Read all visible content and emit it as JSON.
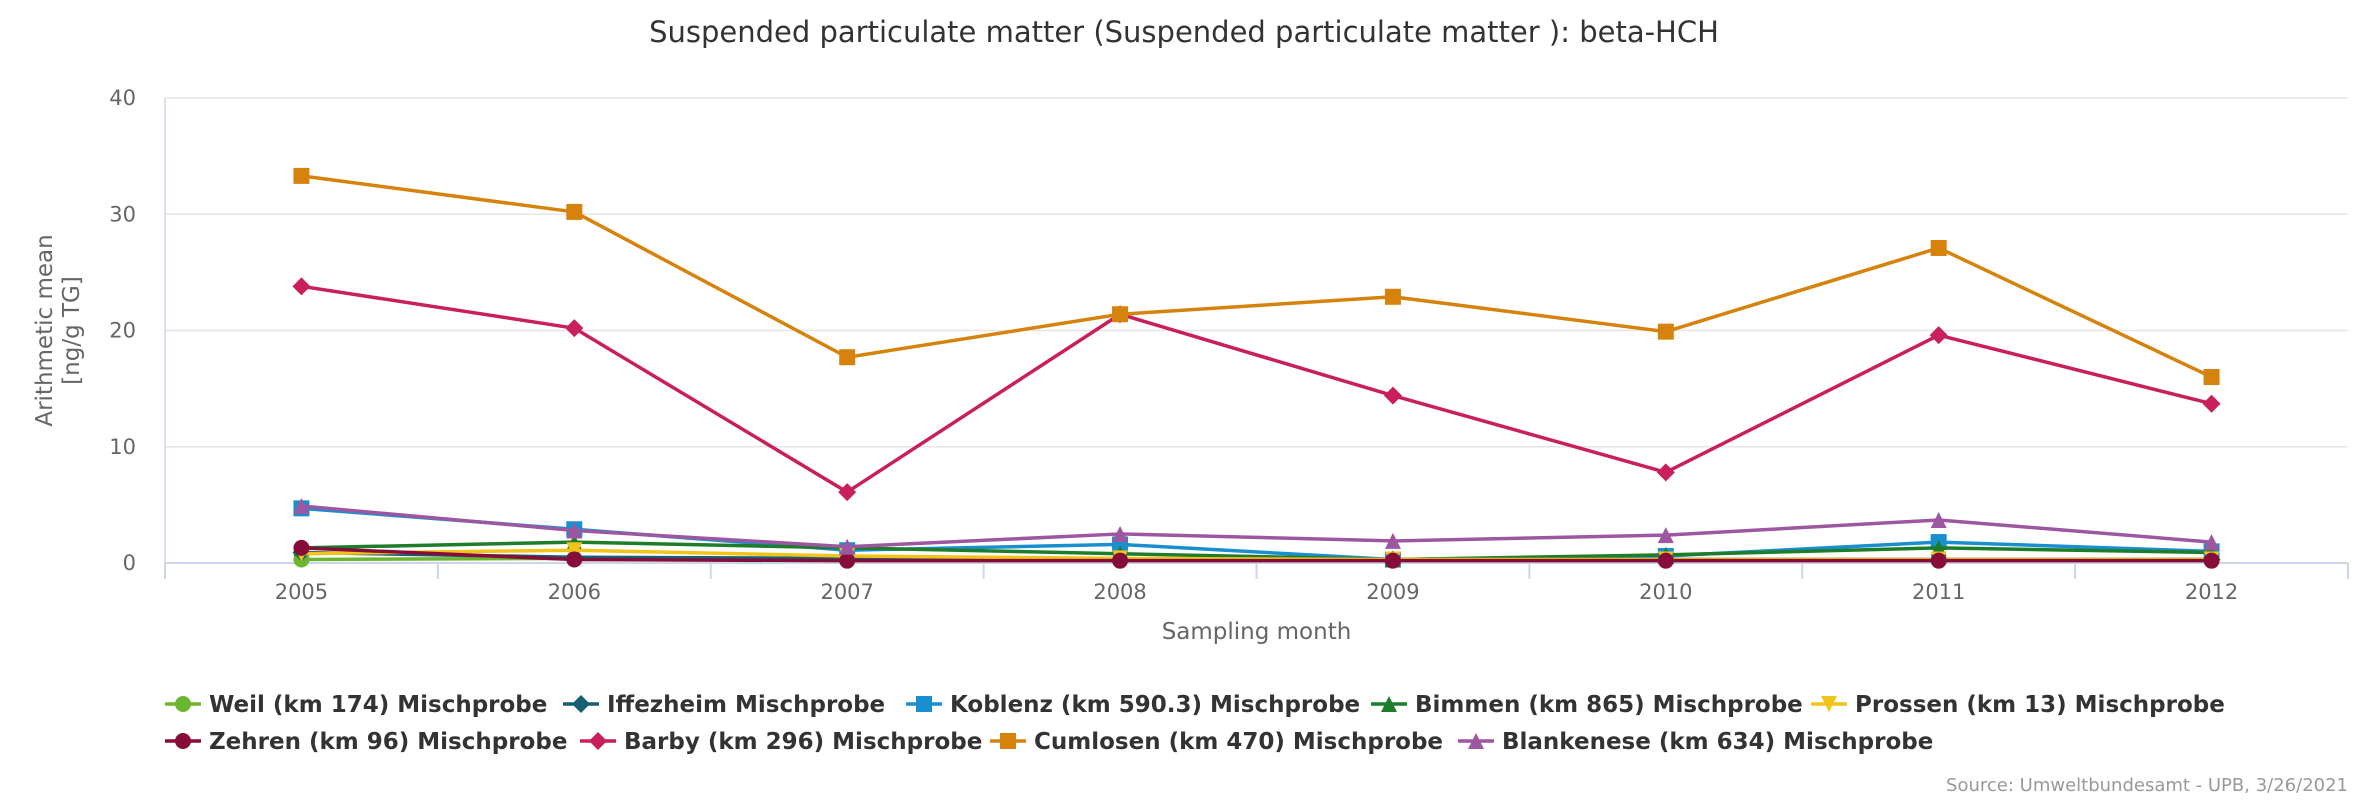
{
  "chart_data": {
    "type": "line",
    "title": "Suspended particulate matter (Suspended particulate matter ): beta-HCH",
    "xlabel": "Sampling month",
    "ylabel": [
      "Arithmetic mean",
      "[ng/g TG]"
    ],
    "categories": [
      "2005",
      "2006",
      "2007",
      "2008",
      "2009",
      "2010",
      "2011",
      "2012"
    ],
    "ylim": [
      0,
      40
    ],
    "yticks": [
      "0",
      "10",
      "20",
      "30",
      "40"
    ],
    "grid": true,
    "legend_position": "bottom-left",
    "series": [
      {
        "name": "Weil (km 174) Mischprobe",
        "color": "#6ab630",
        "marker": "circle",
        "values": [
          0.3,
          0.4,
          0.3,
          0.3,
          0.3,
          0.3,
          0.3,
          0.3
        ]
      },
      {
        "name": "Iffezheim Mischprobe",
        "color": "#155e73",
        "marker": "diamond",
        "values": [
          0.9,
          0.5,
          0.4,
          0.3,
          0.3,
          0.3,
          0.3,
          0.3
        ]
      },
      {
        "name": "Koblenz (km 590.3) Mischprobe",
        "color": "#1a8fd0",
        "marker": "square",
        "values": [
          4.7,
          2.9,
          1.1,
          1.6,
          0.3,
          0.6,
          1.8,
          1.0
        ]
      },
      {
        "name": "Bimmen (km 865) Mischprobe",
        "color": "#1e7d2b",
        "marker": "triangle",
        "values": [
          1.3,
          1.8,
          1.3,
          0.8,
          0.3,
          0.7,
          1.3,
          0.9
        ]
      },
      {
        "name": "Prossen (km 13) Mischprobe",
        "color": "#f2c318",
        "marker": "triangle-down",
        "values": [
          0.8,
          1.1,
          0.6,
          0.4,
          0.3,
          0.3,
          0.3,
          0.3
        ]
      },
      {
        "name": "Zehren (km 96) Mischprobe",
        "color": "#860d3a",
        "marker": "circle",
        "values": [
          1.3,
          0.3,
          0.2,
          0.2,
          0.2,
          0.2,
          0.2,
          0.2
        ]
      },
      {
        "name": "Barby (km 296) Mischprobe",
        "color": "#c91f5c",
        "marker": "diamond",
        "values": [
          23.8,
          20.2,
          6.1,
          21.4,
          14.4,
          7.8,
          19.6,
          13.7
        ]
      },
      {
        "name": "Cumlosen (km 470) Mischprobe",
        "color": "#d5830c",
        "marker": "square",
        "values": [
          33.3,
          30.2,
          17.7,
          21.4,
          22.9,
          19.9,
          27.1,
          16.0
        ]
      },
      {
        "name": "Blankenese (km 634) Mischprobe",
        "color": "#9d56a0",
        "marker": "triangle",
        "values": [
          4.9,
          2.8,
          1.4,
          2.5,
          1.9,
          2.4,
          3.7,
          1.8
        ]
      }
    ],
    "credit": "Source: Umweltbundesamt - UPB, 3/26/2021"
  }
}
